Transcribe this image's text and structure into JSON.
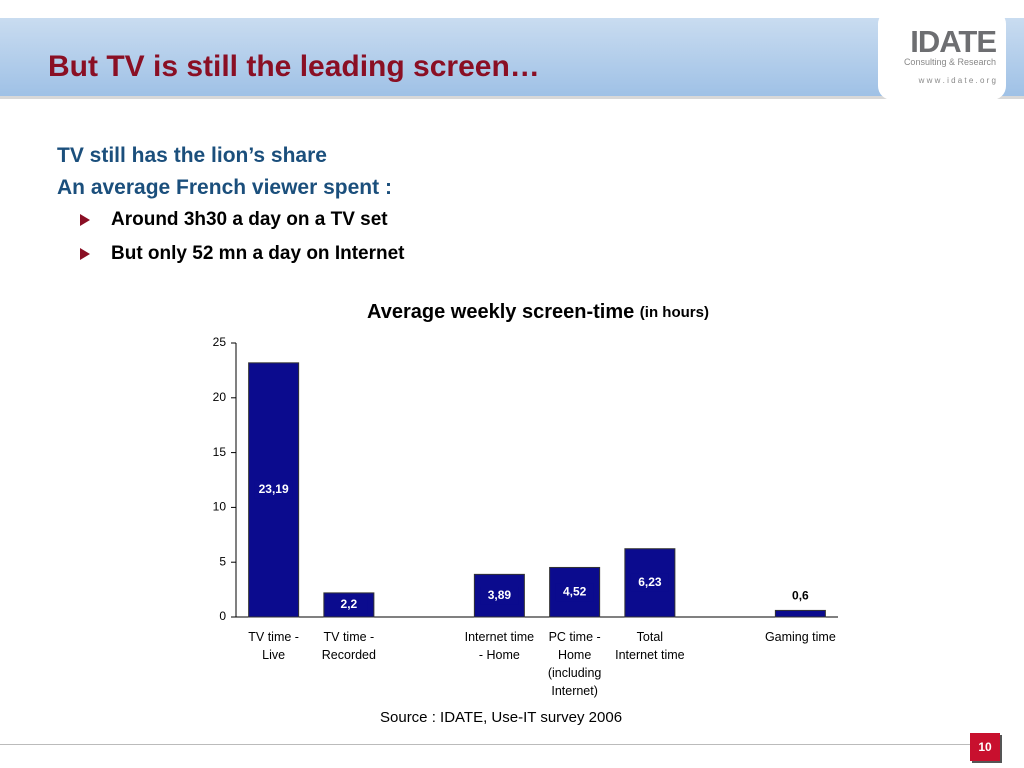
{
  "header": {
    "title": "But TV is still the leading screen…"
  },
  "logo": {
    "name": "IDATE",
    "tagline": "Consulting & Research",
    "url": "w w w . i d a t e . o r g"
  },
  "body": {
    "headings": [
      "TV still has the lion’s share",
      "An average French viewer spent :"
    ],
    "bullets": [
      "Around 3h30 a day on a TV set",
      "But only 52 mn a day on Internet"
    ]
  },
  "chart_data": {
    "type": "bar",
    "title": "Average weekly screen-time",
    "title_unit": "(in hours)",
    "categories": [
      "TV time - Live",
      "TV time - Recorded",
      null,
      "Internet time - Home",
      "PC time - Home (including Internet)",
      "Total Internet time",
      null,
      "Gaming time"
    ],
    "values": [
      23.19,
      2.2,
      null,
      3.89,
      4.52,
      6.23,
      null,
      0.6
    ],
    "value_labels": [
      "23,19",
      "2,2",
      null,
      "3,89",
      "4,52",
      "6,23",
      null,
      "0,6"
    ],
    "color": "#0b0b8e",
    "ylim": [
      0,
      25
    ],
    "yticks": [
      0,
      5,
      10,
      15,
      20,
      25
    ],
    "grid": false,
    "source": "Source : IDATE, Use-IT survey 2006"
  },
  "footer": {
    "page_number": "10"
  }
}
